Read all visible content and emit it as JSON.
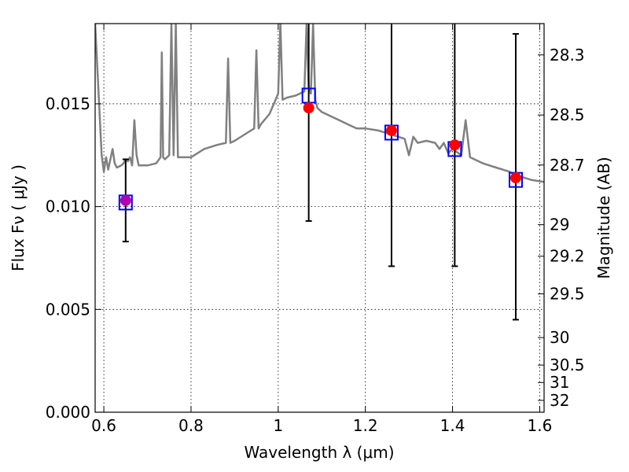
{
  "chart_data": {
    "type": "line",
    "xlabel": "Wavelength  λ (μm)",
    "ylabel": "Flux  Fν  ( μJy )",
    "y2label": "Magnitude (AB)",
    "xlim": [
      0.58,
      1.61
    ],
    "ylim": [
      0.0,
      0.0189
    ],
    "grid": true,
    "x_ticks": [
      0.6,
      0.8,
      1.0,
      1.2,
      1.4,
      1.6
    ],
    "x_tick_labels": [
      "0.6",
      "0.8",
      "1",
      "1.2",
      "1.4",
      "1.6"
    ],
    "y_ticks": [
      0.0,
      0.005,
      0.01,
      0.015
    ],
    "y_tick_labels": [
      "0.000",
      "0.005",
      "0.010",
      "0.015"
    ],
    "y2_ticks": [
      {
        "mag": 28.3,
        "label": "28.3"
      },
      {
        "mag": 28.5,
        "label": "28.5"
      },
      {
        "mag": 28.7,
        "label": "28.7"
      },
      {
        "mag": 29.0,
        "label": "29"
      },
      {
        "mag": 29.2,
        "label": "29.2"
      },
      {
        "mag": 29.5,
        "label": "29.5"
      },
      {
        "mag": 30.0,
        "label": "30"
      },
      {
        "mag": 30.5,
        "label": "30.5"
      },
      {
        "mag": 31.0,
        "label": "31"
      },
      {
        "mag": 32.0,
        "label": "32"
      }
    ],
    "spectrum": {
      "color": "#808080",
      "x": [
        0.58,
        0.595,
        0.6,
        0.605,
        0.61,
        0.615,
        0.62,
        0.625,
        0.63,
        0.64,
        0.645,
        0.65,
        0.655,
        0.66,
        0.665,
        0.67,
        0.675,
        0.68,
        0.7,
        0.72,
        0.73,
        0.733,
        0.736,
        0.74,
        0.75,
        0.755,
        0.76,
        0.765,
        0.77,
        0.8,
        0.83,
        0.86,
        0.88,
        0.885,
        0.89,
        0.9,
        0.93,
        0.945,
        0.95,
        0.955,
        0.96,
        0.98,
        0.99,
        1.0,
        1.005,
        1.01,
        1.02,
        1.04,
        1.06,
        1.065,
        1.07,
        1.075,
        1.08,
        1.085,
        1.09,
        1.1,
        1.12,
        1.14,
        1.16,
        1.18,
        1.2,
        1.23,
        1.26,
        1.29,
        1.3,
        1.31,
        1.32,
        1.34,
        1.36,
        1.37,
        1.38,
        1.39,
        1.4,
        1.42,
        1.43,
        1.44,
        1.45,
        1.47,
        1.5,
        1.53,
        1.55,
        1.58,
        1.61
      ],
      "y": [
        0.0189,
        0.0125,
        0.0117,
        0.0124,
        0.0118,
        0.0123,
        0.0128,
        0.0121,
        0.0119,
        0.012,
        0.0121,
        0.0123,
        0.0122,
        0.0124,
        0.012,
        0.0142,
        0.0125,
        0.012,
        0.012,
        0.0121,
        0.0124,
        0.0175,
        0.0124,
        0.0123,
        0.0125,
        0.0189,
        0.0125,
        0.0189,
        0.0124,
        0.0124,
        0.0128,
        0.013,
        0.0131,
        0.0172,
        0.0131,
        0.0132,
        0.0136,
        0.0138,
        0.0176,
        0.0138,
        0.014,
        0.0145,
        0.015,
        0.0155,
        0.0189,
        0.0152,
        0.0153,
        0.0154,
        0.0156,
        0.0189,
        0.0158,
        0.0155,
        0.0189,
        0.0152,
        0.0148,
        0.0146,
        0.0144,
        0.0142,
        0.014,
        0.0138,
        0.0138,
        0.0137,
        0.0135,
        0.0133,
        0.0125,
        0.0134,
        0.0131,
        0.0132,
        0.0131,
        0.0128,
        0.0131,
        0.0126,
        0.0128,
        0.0125,
        0.0142,
        0.0124,
        0.0123,
        0.0121,
        0.0119,
        0.0117,
        0.0115,
        0.0113,
        0.0112
      ]
    },
    "photometry": [
      {
        "x": 0.65,
        "y": 0.0103,
        "err_low": 0.0083,
        "err_high": 0.0123,
        "square_y": 0.0102,
        "color": "#b000b0"
      },
      {
        "x": 1.07,
        "y": 0.0148,
        "err_low": 0.0093,
        "err_high": 0.0189,
        "square_y": 0.0154,
        "color": "#ff0000"
      },
      {
        "x": 1.26,
        "y": 0.0137,
        "err_low": 0.0071,
        "err_high": 0.0189,
        "square_y": 0.0136,
        "color": "#ff0000"
      },
      {
        "x": 1.405,
        "y": 0.013,
        "err_low": 0.0071,
        "err_high": 0.0189,
        "square_y": 0.0128,
        "color": "#ff0000"
      },
      {
        "x": 1.545,
        "y": 0.0114,
        "err_low": 0.0045,
        "err_high": 0.0184,
        "square_y": 0.0113,
        "color": "#ff0000"
      }
    ],
    "square_color": "#0000ff",
    "errorbar_color": "#000000"
  }
}
